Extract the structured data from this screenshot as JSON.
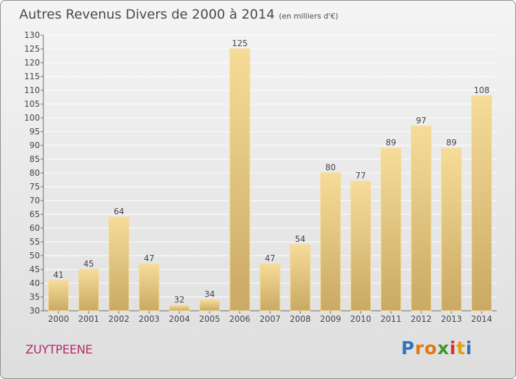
{
  "header": {
    "title": "Autres Revenus Divers de 2000 à 2014",
    "unit": "(en milliers d'€)"
  },
  "footer": {
    "commune": "ZUYTPEENE",
    "logo": [
      "P",
      "r",
      "o",
      "x",
      "i",
      "t",
      "i"
    ]
  },
  "chart_data": {
    "type": "bar",
    "categories": [
      "2000",
      "2001",
      "2002",
      "2003",
      "2004",
      "2005",
      "2006",
      "2007",
      "2008",
      "2009",
      "2010",
      "2011",
      "2012",
      "2013",
      "2014"
    ],
    "values": [
      41,
      45,
      64,
      47,
      32,
      34,
      125,
      47,
      54,
      80,
      77,
      89,
      97,
      89,
      108
    ],
    "ylim": [
      30,
      130
    ],
    "yticks": [
      30,
      35,
      40,
      45,
      50,
      55,
      60,
      65,
      70,
      75,
      80,
      85,
      90,
      95,
      100,
      105,
      110,
      115,
      120,
      125,
      130
    ],
    "grid": true,
    "colors": {
      "bar_light": "#f6dc98",
      "bar_dark": "#c9a963",
      "grid": "#ffffff",
      "text": "#444444"
    }
  }
}
